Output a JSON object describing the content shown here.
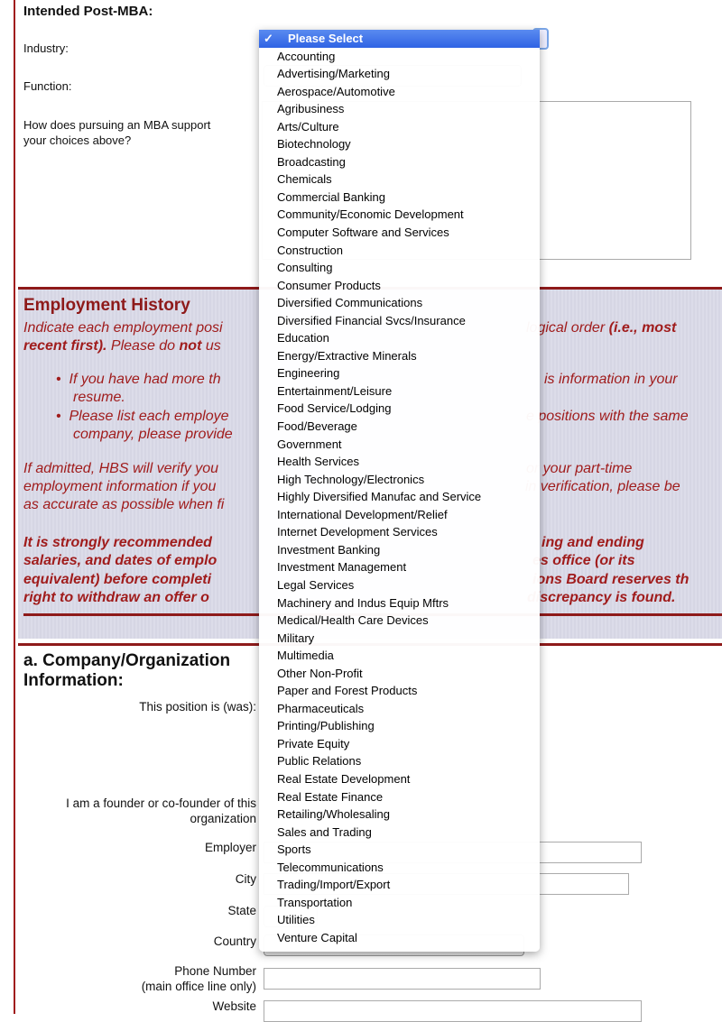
{
  "post_mba": {
    "heading": "Intended Post-MBA:",
    "industry_label": "Industry:",
    "function_label": "Function:",
    "question_label_1": "How does pursuing an MBA support",
    "question_label_2": "your choices above?"
  },
  "employment": {
    "title": "Employment History",
    "intro_1a": "Indicate each employment posi",
    "intro_1b": "logical order ",
    "intro_1c": "(i.e., most",
    "intro_2a": "recent first).",
    "intro_2b": " Please do ",
    "intro_2c": "not",
    "intro_2d": " us",
    "bullet1_a": "If you have had more th",
    "bullet1_b": "is information in your",
    "bullet1_c": "resume.",
    "bullet2_a": "Please list each employe",
    "bullet2_b": "e positions with the same",
    "bullet2_c": "company, please provide",
    "verify_1a": "If admitted, HBS will verify you",
    "verify_1b": "or your part-time",
    "verify_2a": "employment information if you",
    "verify_2b": "in verification, please be",
    "verify_3a": "as accurate as possible when fi",
    "warn_1a": "It is strongly recommended",
    "warn_1b": "ing and ending",
    "warn_2a": "salaries, and dates of emplo",
    "warn_2b": "es office (or its",
    "warn_3a": "equivalent) before completi",
    "warn_3b": "ions Board reserves th",
    "warn_4a": "right to withdraw an offer o",
    "warn_4b": "discrepancy is found."
  },
  "company": {
    "heading": "a. Company/Organization Information:",
    "position_label": "This position is (was):",
    "founder_label_1": "I am a founder or co-founder of this",
    "founder_label_2": "organization",
    "employer_label": "Employer",
    "city_label": "City",
    "state_label": "State",
    "country_label": "Country",
    "phone_label_1": "Phone Number",
    "phone_label_2": "(main office line only)",
    "website_label": "Website"
  },
  "industry_dropdown": {
    "selected": "Please Select",
    "check_icon": "✓",
    "highlight_color": "#3a6fe8",
    "options": [
      "Accounting",
      "Advertising/Marketing",
      "Aerospace/Automotive",
      "Agribusiness",
      "Arts/Culture",
      "Biotechnology",
      "Broadcasting",
      "Chemicals",
      "Commercial Banking",
      "Community/Economic Development",
      "Computer Software and Services",
      "Construction",
      "Consulting",
      "Consumer Products",
      "Diversified Communications",
      "Diversified Financial Svcs/Insurance",
      "Education",
      "Energy/Extractive Minerals",
      "Engineering",
      "Entertainment/Leisure",
      "Food Service/Lodging",
      "Food/Beverage",
      "Government",
      "Health Services",
      "High Technology/Electronics",
      "Highly Diversified Manufac and Service",
      "International Development/Relief",
      "Internet Development Services",
      "Investment Banking",
      "Investment Management",
      "Legal Services",
      "Machinery and Indus Equip Mftrs",
      "Medical/Health Care Devices",
      "Military",
      "Multimedia",
      "Other Non-Profit",
      "Paper and Forest Products",
      "Pharmaceuticals",
      "Printing/Publishing",
      "Private Equity",
      "Public Relations",
      "Real Estate Development",
      "Real Estate Finance",
      "Retailing/Wholesaling",
      "Sales and Trading",
      "Sports",
      "Telecommunications",
      "Trading/Import/Export",
      "Transportation",
      "Utilities",
      "Venture Capital"
    ]
  }
}
